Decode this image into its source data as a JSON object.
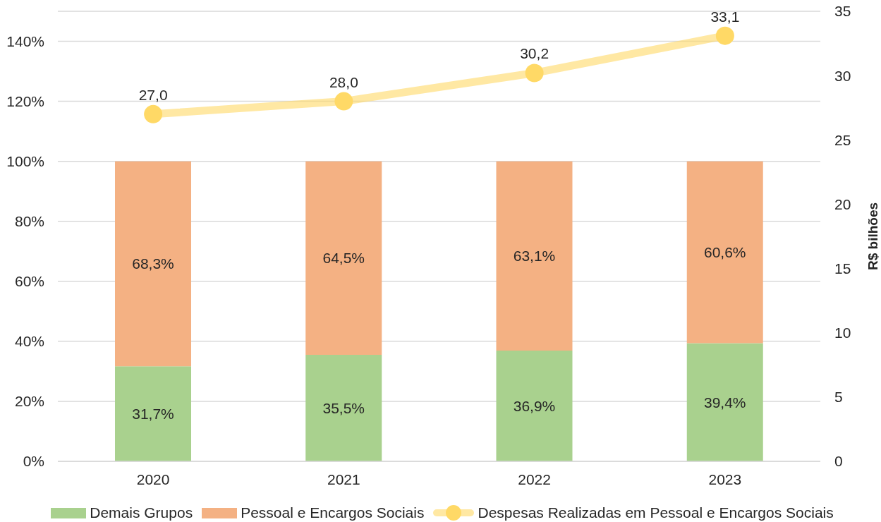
{
  "chart_data": {
    "type": "bar",
    "stacked": true,
    "categories": [
      "2020",
      "2021",
      "2022",
      "2023"
    ],
    "series": [
      {
        "name": "Demais Grupos",
        "color": "#a9d18e",
        "values": [
          31.7,
          35.5,
          36.9,
          39.4
        ],
        "value_labels": [
          "31,7%",
          "35,5%",
          "36,9%",
          "39,4%"
        ]
      },
      {
        "name": "Pessoal e Encargos Sociais",
        "color": "#f4b183",
        "values": [
          68.3,
          64.5,
          63.1,
          60.6
        ],
        "value_labels": [
          "68,3%",
          "64,5%",
          "63,1%",
          "60,6%"
        ]
      },
      {
        "name": "Despesas Realizadas em Pessoal e Encargos Sociais",
        "type": "line",
        "axis": "y2",
        "color": "#ffd966",
        "marker": "circle",
        "line_style": "solid",
        "values": [
          27.0,
          28.0,
          30.2,
          33.1
        ],
        "value_labels": [
          "27,0",
          "28,0",
          "30,2",
          "33,1"
        ]
      }
    ],
    "ylim": [
      0,
      150
    ],
    "yticks": [
      {
        "value": 0,
        "label": "0%"
      },
      {
        "value": 20,
        "label": "20%"
      },
      {
        "value": 40,
        "label": "40%"
      },
      {
        "value": 60,
        "label": "60%"
      },
      {
        "value": 80,
        "label": "80%"
      },
      {
        "value": 100,
        "label": "100%"
      },
      {
        "value": 120,
        "label": "120%"
      },
      {
        "value": 140,
        "label": "140%"
      }
    ],
    "y2lim": [
      0,
      35
    ],
    "y2ticks": [
      0,
      5,
      10,
      15,
      20,
      25,
      30,
      35
    ],
    "y2label": "R$ bilhões",
    "grid": "y",
    "legend": "bottom"
  }
}
